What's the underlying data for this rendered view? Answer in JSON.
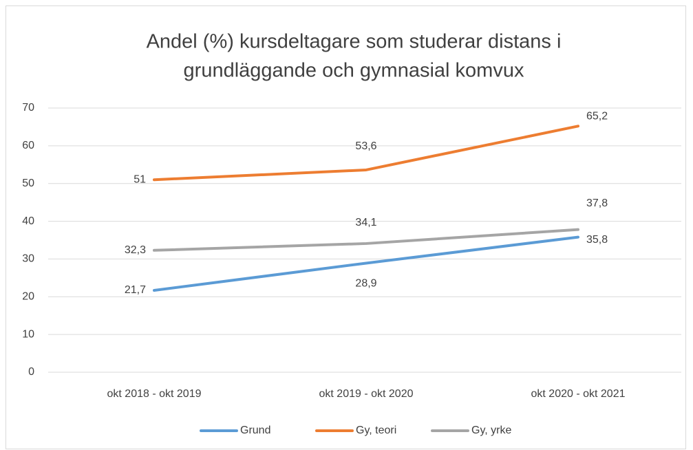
{
  "chart_data": {
    "type": "line",
    "title": [
      "Andel (%) kursdeltagare som studerar distans i",
      "grundläggande och gymnasial komvux"
    ],
    "categories": [
      "okt 2018 - okt 2019",
      "okt 2019 - okt 2020",
      "okt 2020 - okt 2021"
    ],
    "series": [
      {
        "name": "Grund",
        "color": "#5b9bd5",
        "values": [
          21.7,
          28.9,
          35.8
        ],
        "value_labels": [
          "21,7",
          "28,9",
          "35,8"
        ]
      },
      {
        "name": "Gy, teori",
        "color": "#ed7d31",
        "values": [
          51,
          53.6,
          65.2
        ],
        "value_labels": [
          "51",
          "53,6",
          "65,2"
        ]
      },
      {
        "name": "Gy, yrke",
        "color": "#a5a5a5",
        "values": [
          32.3,
          34.1,
          37.8
        ],
        "value_labels": [
          "32,3",
          "34,1",
          "37,8"
        ]
      }
    ],
    "ylim": [
      0,
      70
    ],
    "yticks": [
      0,
      10,
      20,
      30,
      40,
      50,
      60,
      70
    ],
    "grid": true,
    "legend": "bottom"
  }
}
